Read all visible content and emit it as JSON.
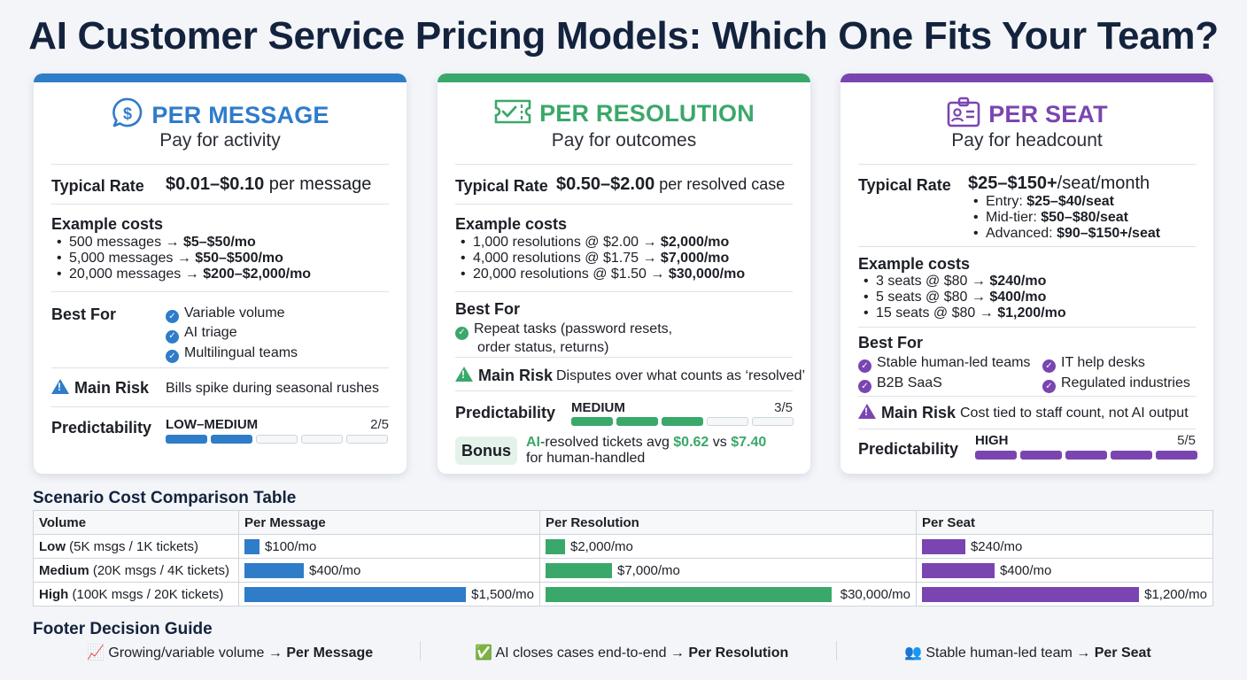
{
  "title": "AI Customer Service Pricing Models: Which One Fits Your Team?",
  "colors": {
    "blue": "#2f7cc9",
    "green": "#3aa86a",
    "purple": "#7a45b0"
  },
  "cards": {
    "message": {
      "name": "PER MESSAGE",
      "icon": "chat-dollar-icon",
      "subtitle": "Pay for activity",
      "rate_label": "Typical Rate",
      "rate_value": "$0.01–$0.10",
      "rate_unit": " per message",
      "examples_label": "Example costs",
      "examples": [
        {
          "text": "500 messages → ",
          "bold": "$5–$50/mo"
        },
        {
          "text": "5,000 messages → ",
          "bold": "$50–$500/mo"
        },
        {
          "text": "20,000 messages → ",
          "bold": "$200–$2,000/mo"
        }
      ],
      "bestfor_label": "Best For",
      "bestfor": [
        "Variable volume",
        "AI triage",
        "Multilingual teams"
      ],
      "risk_label": "Main Risk",
      "risk_text": "Bills spike during seasonal rushes",
      "pred_label": "Predictability",
      "pred_level": "LOW–MEDIUM",
      "pred_score": "2/5",
      "pred_value": 2
    },
    "resolution": {
      "name": "PER RESOLUTION",
      "icon": "ticket-check-icon",
      "subtitle": "Pay for outcomes",
      "rate_label": "Typical Rate",
      "rate_value": "$0.50–$2.00",
      "rate_unit": " per resolved case",
      "examples_label": "Example costs",
      "examples": [
        {
          "text": "1,000 resolutions @ $2.00 → ",
          "bold": "$2,000/mo"
        },
        {
          "text": "4,000 resolutions @ $1.75 → ",
          "bold": "$7,000/mo"
        },
        {
          "text": "20,000 resolutions @ $1.50 → ",
          "bold": "$30,000/mo"
        }
      ],
      "bestfor_label": "Best For",
      "bestfor_line1": "Repeat tasks (password resets,",
      "bestfor_line2": "order status, returns)",
      "risk_label": "Main Risk",
      "risk_text": "Disputes over what counts as ‘resolved’",
      "pred_label": "Predictability",
      "pred_level": "MEDIUM",
      "pred_score": "3/5",
      "pred_value": 3,
      "bonus_label": "Bonus",
      "bonus_prefix": "AI",
      "bonus_mid": "-resolved tickets avg ",
      "bonus_v1": "$0.62",
      "bonus_vs": " vs ",
      "bonus_v2": "$7.40",
      "bonus_line2": "for human-handled"
    },
    "seat": {
      "name": "PER SEAT",
      "icon": "id-badge-icon",
      "subtitle": "Pay for headcount",
      "rate_label": "Typical Rate",
      "rate_value": "$25–$150+",
      "rate_unit": "/seat/month",
      "tiers": [
        {
          "text": "Entry: ",
          "bold": "$25–$40/seat"
        },
        {
          "text": "Mid-tier: ",
          "bold": "$50–$80/seat"
        },
        {
          "text": "Advanced: ",
          "bold": "$90–$150+/seat"
        }
      ],
      "examples_label": "Example costs",
      "examples": [
        {
          "text": "3 seats @ $80 → ",
          "bold": "$240/mo"
        },
        {
          "text": "5 seats @ $80 → ",
          "bold": "$400/mo"
        },
        {
          "text": "15 seats @ $80 → ",
          "bold": "$1,200/mo"
        }
      ],
      "bestfor_label": "Best For",
      "bestfor": [
        "Stable human-led teams",
        "IT help desks",
        "B2B SaaS",
        "Regulated industries"
      ],
      "risk_label": "Main Risk",
      "risk_text": "Cost tied to staff count, not AI output",
      "pred_label": "Predictability",
      "pred_level": "HIGH",
      "pred_score": "5/5",
      "pred_value": 5
    }
  },
  "table": {
    "title": "Scenario Cost Comparison Table",
    "headers": [
      "Volume",
      "Per Message",
      "Per Resolution",
      "Per Seat"
    ],
    "rows": [
      {
        "vol_bold": "Low",
        "vol_rest": " (5K msgs / 1K tickets)",
        "msg": "$100/mo",
        "msg_v": 100,
        "res": "$2,000/mo",
        "res_v": 2000,
        "seat": "$240/mo",
        "seat_v": 240
      },
      {
        "vol_bold": "Medium",
        "vol_rest": " (20K msgs / 4K tickets)",
        "msg": "$400/mo",
        "msg_v": 400,
        "res": "$7,000/mo",
        "res_v": 7000,
        "seat": "$400/mo",
        "seat_v": 400
      },
      {
        "vol_bold": "High",
        "vol_rest": " (100K msgs / 20K tickets)",
        "msg": "$1,500/mo",
        "msg_v": 1500,
        "res": "$30,000/mo",
        "res_v": 30000,
        "seat": "$1,200/mo",
        "seat_v": 1200
      }
    ]
  },
  "footer": {
    "title": "Footer Decision Guide",
    "items": [
      {
        "emoji": "📈",
        "text": "Growing/variable volume → ",
        "bold": "Per Message"
      },
      {
        "emoji": "✅",
        "text": "AI closes cases end-to-end → ",
        "bold": "Per Resolution"
      },
      {
        "emoji": "👥",
        "text": "Stable human-led team → ",
        "bold": "Per Seat"
      }
    ]
  }
}
